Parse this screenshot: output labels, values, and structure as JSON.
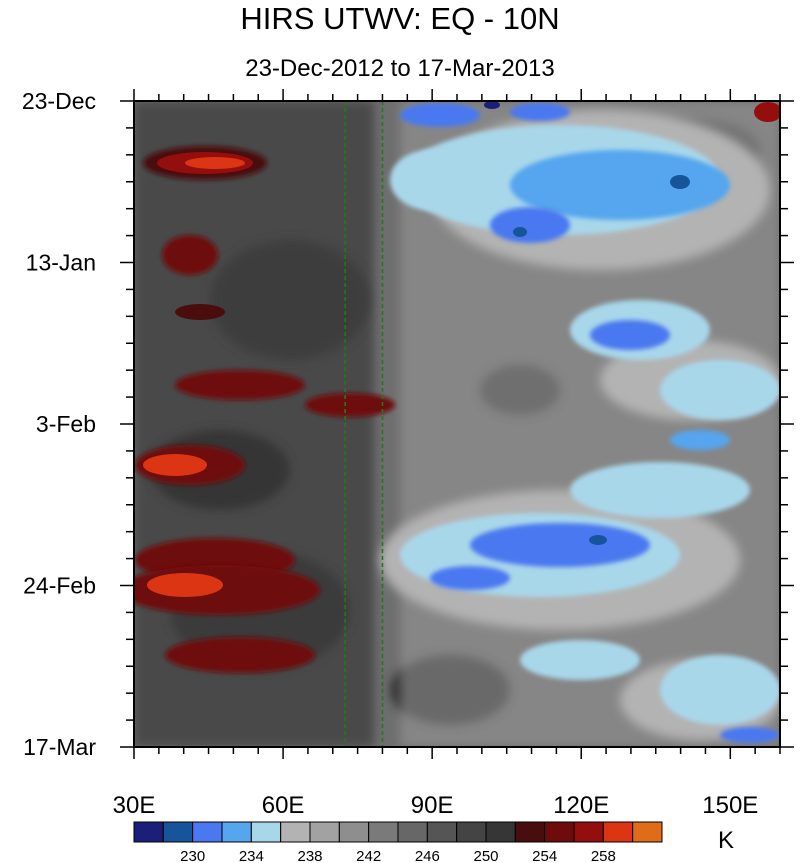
{
  "chart_data": {
    "type": "heatmap",
    "title": "HIRS UTWV: EQ - 10N",
    "subtitle": "23-Dec-2012 to 17-Mar-2013",
    "xlabel": "",
    "ylabel": "",
    "x_range": [
      30,
      160
    ],
    "y_range_days": [
      0,
      84
    ],
    "x_ticks": [
      {
        "value": 30,
        "label": "30E"
      },
      {
        "value": 60,
        "label": "60E"
      },
      {
        "value": 90,
        "label": "90E"
      },
      {
        "value": 120,
        "label": "120E"
      },
      {
        "value": 150,
        "label": "150E"
      }
    ],
    "y_ticks": [
      {
        "day": 0,
        "label": "23-Dec"
      },
      {
        "day": 21,
        "label": "13-Jan"
      },
      {
        "day": 42,
        "label": "3-Feb"
      },
      {
        "day": 63,
        "label": "24-Feb"
      },
      {
        "day": 84,
        "label": "17-Mar"
      }
    ],
    "reference_lines_lon": [
      72.5,
      80
    ],
    "colorbar": {
      "units": "K",
      "levels": [
        228,
        230,
        232,
        234,
        236,
        238,
        240,
        242,
        244,
        246,
        248,
        250,
        252,
        254,
        256,
        258,
        260
      ],
      "labeled": [
        230,
        234,
        238,
        242,
        246,
        250,
        254,
        258
      ],
      "colors": [
        "#1b1f7a",
        "#17559a",
        "#4a78f0",
        "#55a6ee",
        "#a9d7ea",
        "#b3b3b3",
        "#a2a2a2",
        "#8e8e8e",
        "#7a7a7a",
        "#676767",
        "#555555",
        "#444444",
        "#363636",
        "#4a0d0d",
        "#6e0b0b",
        "#950e0e",
        "#dc3514",
        "#e06b18"
      ]
    },
    "features": [
      {
        "lon": 39,
        "day": 8,
        "value": 258
      },
      {
        "lon": 37,
        "day": 19,
        "value": 254
      },
      {
        "lon": 40,
        "day": 47,
        "value": 257
      },
      {
        "lon": 43,
        "day": 60,
        "value": 255
      },
      {
        "lon": 41,
        "day": 63,
        "value": 258
      },
      {
        "lon": 52,
        "day": 71,
        "value": 255
      },
      {
        "lon": 47,
        "day": 38,
        "value": 254
      },
      {
        "lon": 117,
        "day": 9,
        "value": 232
      },
      {
        "lon": 124,
        "day": 33,
        "value": 234
      },
      {
        "lon": 128,
        "day": 57,
        "value": 232
      }
    ]
  }
}
